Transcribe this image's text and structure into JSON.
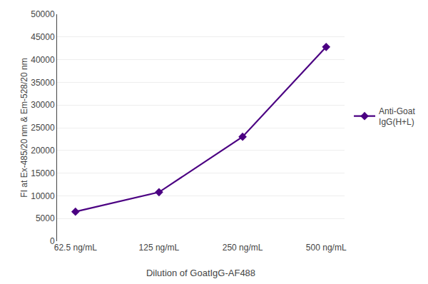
{
  "chart_data": {
    "type": "line",
    "categories": [
      "62.5 ng/mL",
      "125 ng/mL",
      "250 ng/mL",
      "500 ng/mL"
    ],
    "series": [
      {
        "name": "Anti-Goat\nIgG(H+L)",
        "color": "#4b0082",
        "marker": "diamond",
        "line_style": "solid",
        "values": [
          6500,
          10800,
          23000,
          42800
        ]
      }
    ],
    "xlabel": "Dilution of GoatIgG-AF488",
    "ylabel": "FI at Ex-485/20 nm & Em-528/20 nm",
    "ylim": [
      0,
      50000
    ],
    "yticks": [
      0,
      5000,
      10000,
      15000,
      20000,
      25000,
      30000,
      35000,
      40000,
      45000,
      50000
    ],
    "grid": true,
    "legend": "right"
  }
}
